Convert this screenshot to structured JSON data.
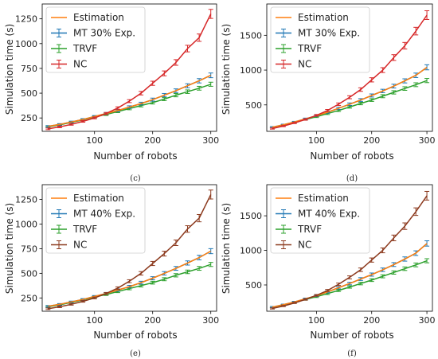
{
  "chart_data": [
    {
      "type": "line",
      "caption": "(c)",
      "xlabel": "Number of robots",
      "ylabel": "Simulation time (s)",
      "xlim": [
        10,
        310
      ],
      "ylim": [
        115,
        1400
      ],
      "xticks": [
        100,
        200,
        300
      ],
      "yticks": [
        250,
        500,
        750,
        1000,
        1250
      ],
      "legend_position": "top-left",
      "x": [
        20,
        40,
        60,
        80,
        100,
        120,
        140,
        160,
        180,
        200,
        220,
        240,
        260,
        280,
        300
      ],
      "series": [
        {
          "name": "Estimation",
          "color": "#ff7f0e",
          "values": [
            165,
            185,
            210,
            235,
            265,
            295,
            325,
            360,
            395,
            435,
            480,
            525,
            575,
            625,
            680
          ]
        },
        {
          "name": "MT 30% Exp.",
          "color": "#1f77b4",
          "values": [
            165,
            185,
            210,
            235,
            265,
            295,
            325,
            360,
            395,
            435,
            480,
            525,
            575,
            625,
            680
          ]
        },
        {
          "name": "TRVF",
          "color": "#2ca02c",
          "values": [
            160,
            180,
            205,
            230,
            260,
            285,
            315,
            345,
            375,
            405,
            440,
            480,
            515,
            550,
            590
          ]
        },
        {
          "name": "NC",
          "color": "#d62728",
          "values": [
            140,
            160,
            185,
            215,
            250,
            295,
            350,
            420,
            500,
            600,
            700,
            810,
            950,
            1060,
            1300
          ]
        }
      ]
    },
    {
      "type": "line",
      "caption": "(d)",
      "xlabel": "Number of robots",
      "ylabel": "Simulation time (s)",
      "xlim": [
        10,
        310
      ],
      "ylim": [
        120,
        1950
      ],
      "xticks": [
        100,
        200,
        300
      ],
      "yticks": [
        500,
        1000,
        1500
      ],
      "legend_position": "top-left",
      "x": [
        20,
        40,
        60,
        80,
        100,
        120,
        140,
        160,
        180,
        200,
        220,
        240,
        260,
        280,
        300
      ],
      "series": [
        {
          "name": "Estimation",
          "color": "#ff7f0e",
          "values": [
            180,
            215,
            255,
            300,
            345,
            395,
            450,
            510,
            570,
            635,
            700,
            770,
            845,
            925,
            1040
          ]
        },
        {
          "name": "MT 30% Exp.",
          "color": "#1f77b4",
          "values": [
            180,
            215,
            255,
            300,
            345,
            395,
            450,
            510,
            570,
            635,
            700,
            770,
            845,
            925,
            1040
          ]
        },
        {
          "name": "TRVF",
          "color": "#2ca02c",
          "values": [
            180,
            210,
            250,
            290,
            330,
            375,
            420,
            470,
            520,
            570,
            625,
            680,
            735,
            790,
            850
          ]
        },
        {
          "name": "NC",
          "color": "#d62728",
          "values": [
            160,
            195,
            240,
            290,
            350,
            420,
            510,
            610,
            720,
            860,
            1000,
            1180,
            1350,
            1560,
            1790
          ]
        }
      ]
    },
    {
      "type": "line",
      "caption": "(e)",
      "xlabel": "Number of robots",
      "ylabel": "Simulation time (s)",
      "xlim": [
        10,
        310
      ],
      "ylim": [
        115,
        1400
      ],
      "xticks": [
        100,
        200,
        300
      ],
      "yticks": [
        250,
        500,
        750,
        1000,
        1250
      ],
      "legend_position": "top-left",
      "x": [
        20,
        40,
        60,
        80,
        100,
        120,
        140,
        160,
        180,
        200,
        220,
        240,
        260,
        280,
        300
      ],
      "series": [
        {
          "name": "Estimation",
          "color": "#ff7f0e",
          "values": [
            165,
            185,
            210,
            235,
            265,
            295,
            330,
            365,
            405,
            450,
            500,
            550,
            605,
            660,
            725
          ]
        },
        {
          "name": "MT 40% Exp.",
          "color": "#1f77b4",
          "values": [
            165,
            185,
            210,
            235,
            265,
            295,
            330,
            365,
            405,
            450,
            500,
            550,
            605,
            660,
            725
          ]
        },
        {
          "name": "TRVF",
          "color": "#2ca02c",
          "values": [
            160,
            180,
            205,
            230,
            260,
            285,
            315,
            345,
            375,
            405,
            440,
            480,
            515,
            550,
            590
          ]
        },
        {
          "name": "NC",
          "color": "#8c3a1e",
          "values": [
            140,
            160,
            185,
            215,
            250,
            295,
            350,
            420,
            500,
            600,
            700,
            810,
            950,
            1060,
            1300
          ]
        }
      ]
    },
    {
      "type": "line",
      "caption": "(f)",
      "xlabel": "Number of robots",
      "ylabel": "Simulation time (s)",
      "xlim": [
        10,
        310
      ],
      "ylim": [
        120,
        1950
      ],
      "xticks": [
        100,
        200,
        300
      ],
      "yticks": [
        500,
        1000,
        1500
      ],
      "legend_position": "top-left",
      "x": [
        20,
        40,
        60,
        80,
        100,
        120,
        140,
        160,
        180,
        200,
        220,
        240,
        260,
        280,
        300
      ],
      "series": [
        {
          "name": "Estimation",
          "color": "#ff7f0e",
          "values": [
            180,
            215,
            255,
            300,
            345,
            400,
            460,
            520,
            585,
            650,
            720,
            795,
            875,
            960,
            1100
          ]
        },
        {
          "name": "MT 40% Exp.",
          "color": "#1f77b4",
          "values": [
            180,
            215,
            255,
            300,
            345,
            400,
            460,
            520,
            585,
            650,
            720,
            795,
            875,
            960,
            1100
          ]
        },
        {
          "name": "TRVF",
          "color": "#2ca02c",
          "values": [
            180,
            210,
            250,
            290,
            330,
            375,
            420,
            470,
            520,
            570,
            625,
            680,
            735,
            790,
            850
          ]
        },
        {
          "name": "NC",
          "color": "#8c3a1e",
          "values": [
            160,
            195,
            240,
            290,
            350,
            420,
            510,
            610,
            720,
            860,
            1000,
            1180,
            1350,
            1560,
            1790
          ]
        }
      ]
    }
  ]
}
